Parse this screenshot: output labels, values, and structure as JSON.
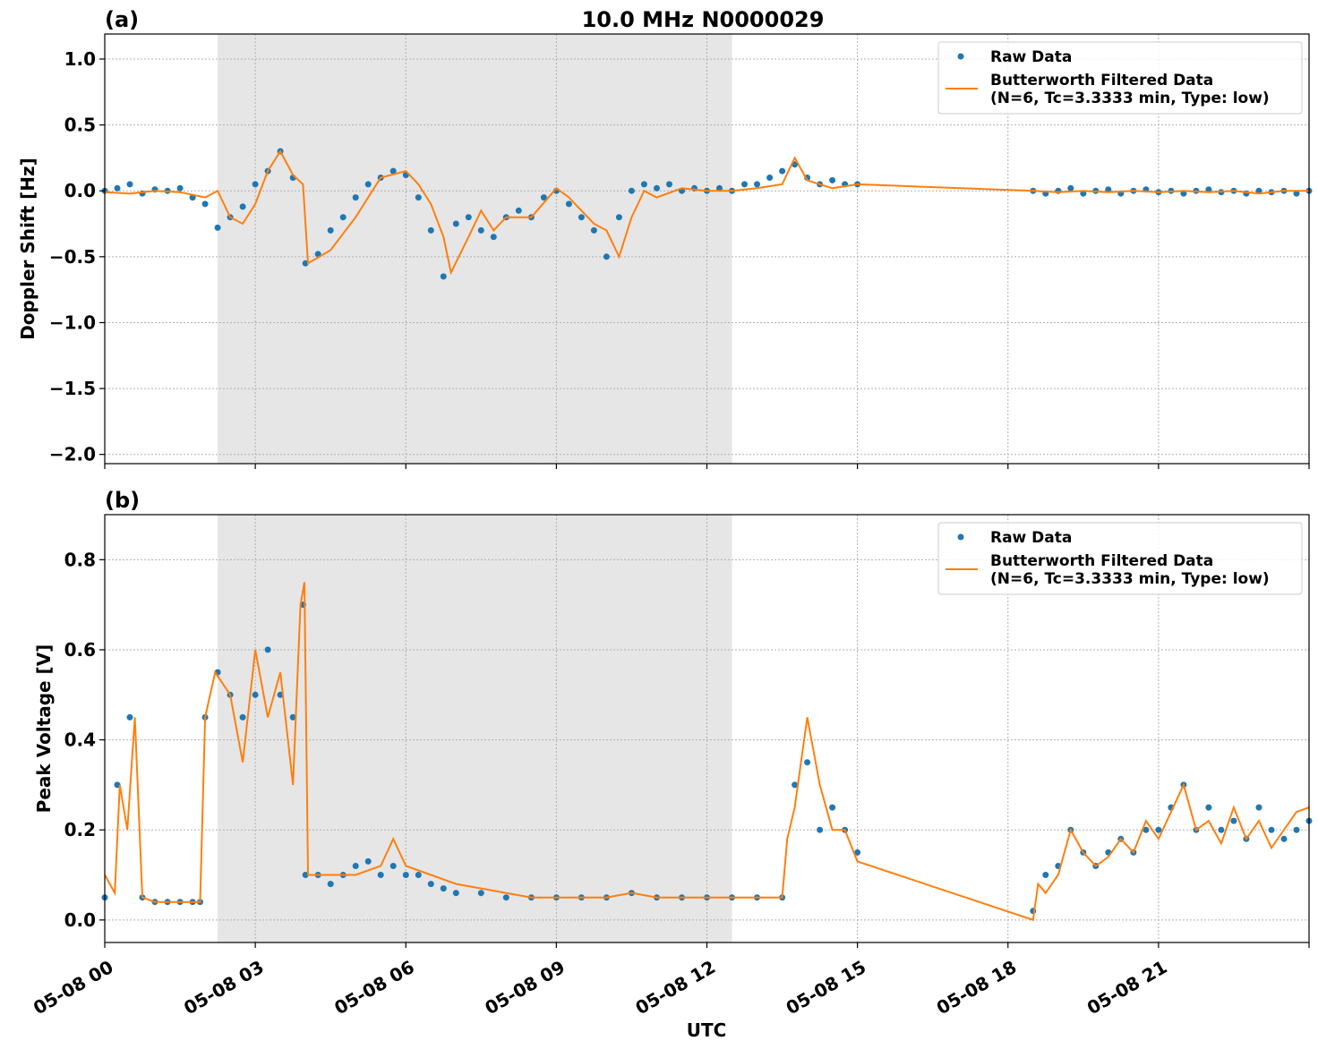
{
  "figure": {
    "title": "10.0 MHz N0000029",
    "xlabel": "UTC"
  },
  "chart_data": [
    {
      "type": "scatter",
      "panel_label": "(a)",
      "ylabel": "Doppler Shift [Hz]",
      "x_unit": "hours UTC on 05-08",
      "xlim": [
        0,
        24
      ],
      "ylim": [
        -2.07,
        1.19
      ],
      "x_ticks": [
        0,
        3,
        6,
        9,
        12,
        15,
        18,
        21
      ],
      "x_tick_labels": [
        "05-08 00",
        "05-08 03",
        "05-08 06",
        "05-08 09",
        "05-08 12",
        "05-08 15",
        "05-08 18",
        "05-08 21"
      ],
      "y_ticks": [
        -2.0,
        -1.5,
        -1.0,
        -0.5,
        0.0,
        0.5,
        1.0
      ],
      "y_tick_labels": [
        "−2.0",
        "−1.5",
        "−1.0",
        "−0.5",
        "0.0",
        "0.5",
        "1.0"
      ],
      "grid": true,
      "shaded_region": {
        "x_start": 2.25,
        "x_end": 12.5,
        "color": "#e6e6e6"
      },
      "legend": {
        "placement": "top-right",
        "entries": [
          "Raw Data",
          "Butterworth Filtered Data",
          "(N=6, Tc=3.3333 min, Type: low)"
        ]
      },
      "series": [
        {
          "name": "Raw Data",
          "kind": "scatter",
          "color": "#1f77b4",
          "x": [
            0.0,
            0.25,
            0.5,
            0.75,
            1.0,
            1.25,
            1.5,
            1.75,
            2.0,
            2.25,
            2.5,
            2.75,
            3.0,
            3.25,
            3.5,
            3.75,
            4.0,
            4.25,
            4.5,
            4.75,
            5.0,
            5.25,
            5.5,
            5.75,
            6.0,
            6.25,
            6.5,
            6.75,
            7.0,
            7.25,
            7.5,
            7.75,
            8.0,
            8.25,
            8.5,
            8.75,
            9.0,
            9.25,
            9.5,
            9.75,
            10.0,
            10.25,
            10.5,
            10.75,
            11.0,
            11.25,
            11.5,
            11.75,
            12.0,
            12.25,
            12.5,
            12.75,
            13.0,
            13.25,
            13.5,
            13.75,
            14.0,
            14.25,
            14.5,
            14.75,
            15.0,
            18.5,
            18.75,
            19.0,
            19.25,
            19.5,
            19.75,
            20.0,
            20.25,
            20.5,
            20.75,
            21.0,
            21.25,
            21.5,
            21.75,
            22.0,
            22.25,
            22.5,
            22.75,
            23.0,
            23.25,
            23.5,
            23.75,
            24.0
          ],
          "y": [
            0.0,
            0.02,
            0.05,
            -0.02,
            0.01,
            0.0,
            0.02,
            -0.05,
            -0.1,
            -0.28,
            -0.2,
            -0.12,
            0.05,
            0.15,
            0.3,
            0.1,
            -0.55,
            -0.48,
            -0.3,
            -0.2,
            -0.05,
            0.05,
            0.1,
            0.15,
            0.12,
            -0.05,
            -0.3,
            -0.65,
            -0.25,
            -0.2,
            -0.3,
            -0.35,
            -0.2,
            -0.15,
            -0.2,
            -0.05,
            0.0,
            -0.1,
            -0.2,
            -0.3,
            -0.5,
            -0.2,
            0.0,
            0.05,
            0.02,
            0.05,
            0.0,
            0.02,
            0.0,
            0.02,
            0.0,
            0.05,
            0.05,
            0.1,
            0.15,
            0.2,
            0.1,
            0.05,
            0.08,
            0.05,
            0.05,
            0.0,
            -0.02,
            0.0,
            0.02,
            -0.02,
            0.0,
            0.01,
            -0.02,
            0.0,
            0.01,
            -0.01,
            0.0,
            -0.02,
            0.0,
            0.01,
            -0.01,
            0.0,
            -0.02,
            0.0,
            -0.01,
            0.0,
            -0.02,
            0.0
          ]
        },
        {
          "name": "Butterworth Filtered Data",
          "kind": "line",
          "color": "#ff7f0e",
          "x": [
            0.0,
            0.5,
            1.0,
            1.5,
            2.0,
            2.25,
            2.5,
            2.75,
            3.0,
            3.25,
            3.5,
            3.75,
            3.95,
            4.05,
            4.5,
            5.0,
            5.5,
            6.0,
            6.25,
            6.5,
            6.75,
            6.9,
            7.25,
            7.5,
            7.75,
            8.0,
            8.5,
            9.0,
            9.25,
            9.5,
            9.75,
            10.0,
            10.25,
            10.5,
            10.75,
            11.0,
            11.5,
            12.0,
            12.5,
            13.0,
            13.5,
            13.75,
            14.0,
            14.5,
            15.0,
            18.5,
            19.0,
            19.5,
            20.0,
            20.5,
            21.0,
            21.5,
            22.0,
            22.5,
            23.0,
            23.5,
            24.0
          ],
          "y": [
            -0.01,
            -0.02,
            0.0,
            -0.01,
            -0.05,
            0.0,
            -0.2,
            -0.25,
            -0.1,
            0.15,
            0.3,
            0.12,
            0.05,
            -0.55,
            -0.45,
            -0.2,
            0.1,
            0.15,
            0.05,
            -0.1,
            -0.35,
            -0.62,
            -0.35,
            -0.15,
            -0.3,
            -0.2,
            -0.2,
            0.02,
            -0.05,
            -0.15,
            -0.25,
            -0.3,
            -0.5,
            -0.2,
            0.0,
            -0.05,
            0.02,
            0.0,
            0.0,
            0.02,
            0.05,
            0.25,
            0.08,
            0.02,
            0.05,
            0.0,
            -0.01,
            0.0,
            -0.01,
            0.0,
            -0.01,
            0.0,
            -0.01,
            0.0,
            -0.02,
            0.0,
            0.0
          ]
        }
      ]
    },
    {
      "type": "scatter",
      "panel_label": "(b)",
      "ylabel": "Peak Voltage [V]",
      "x_unit": "hours UTC on 05-08",
      "xlim": [
        0,
        24
      ],
      "ylim": [
        -0.05,
        0.9
      ],
      "x_ticks": [
        0,
        3,
        6,
        9,
        12,
        15,
        18,
        21
      ],
      "x_tick_labels": [
        "05-08 00",
        "05-08 03",
        "05-08 06",
        "05-08 09",
        "05-08 12",
        "05-08 15",
        "05-08 18",
        "05-08 21"
      ],
      "y_ticks": [
        0.0,
        0.2,
        0.4,
        0.6,
        0.8
      ],
      "y_tick_labels": [
        "0.0",
        "0.2",
        "0.4",
        "0.6",
        "0.8"
      ],
      "grid": true,
      "shaded_region": {
        "x_start": 2.25,
        "x_end": 12.5,
        "color": "#e6e6e6"
      },
      "legend": {
        "placement": "top-right",
        "entries": [
          "Raw Data",
          "Butterworth Filtered Data",
          "(N=6, Tc=3.3333 min, Type: low)"
        ]
      },
      "series": [
        {
          "name": "Raw Data",
          "kind": "scatter",
          "color": "#1f77b4",
          "x": [
            0.0,
            0.25,
            0.5,
            0.75,
            1.0,
            1.25,
            1.5,
            1.75,
            1.9,
            2.0,
            2.25,
            2.5,
            2.75,
            3.0,
            3.25,
            3.5,
            3.75,
            3.95,
            4.0,
            4.25,
            4.5,
            4.75,
            5.0,
            5.25,
            5.5,
            5.75,
            6.0,
            6.25,
            6.5,
            6.75,
            7.0,
            7.5,
            8.0,
            8.5,
            9.0,
            9.5,
            10.0,
            10.5,
            11.0,
            11.5,
            12.0,
            12.5,
            13.0,
            13.5,
            13.75,
            14.0,
            14.25,
            14.5,
            14.75,
            15.0,
            18.5,
            18.75,
            19.0,
            19.25,
            19.5,
            19.75,
            20.0,
            20.25,
            20.5,
            20.75,
            21.0,
            21.25,
            21.5,
            21.75,
            22.0,
            22.25,
            22.5,
            22.75,
            23.0,
            23.25,
            23.5,
            23.75,
            24.0
          ],
          "y": [
            0.05,
            0.3,
            0.45,
            0.05,
            0.04,
            0.04,
            0.04,
            0.04,
            0.04,
            0.45,
            0.55,
            0.5,
            0.45,
            0.5,
            0.6,
            0.5,
            0.45,
            0.7,
            0.1,
            0.1,
            0.08,
            0.1,
            0.12,
            0.13,
            0.1,
            0.12,
            0.1,
            0.1,
            0.08,
            0.07,
            0.06,
            0.06,
            0.05,
            0.05,
            0.05,
            0.05,
            0.05,
            0.06,
            0.05,
            0.05,
            0.05,
            0.05,
            0.05,
            0.05,
            0.3,
            0.35,
            0.2,
            0.25,
            0.2,
            0.15,
            0.02,
            0.1,
            0.12,
            0.2,
            0.15,
            0.12,
            0.15,
            0.18,
            0.15,
            0.2,
            0.2,
            0.25,
            0.3,
            0.2,
            0.25,
            0.2,
            0.22,
            0.18,
            0.25,
            0.2,
            0.18,
            0.2,
            0.22
          ]
        },
        {
          "name": "Butterworth Filtered Data",
          "kind": "line",
          "color": "#ff7f0e",
          "x": [
            0.0,
            0.2,
            0.3,
            0.45,
            0.6,
            0.75,
            1.0,
            1.5,
            1.9,
            2.0,
            2.2,
            2.5,
            2.75,
            3.0,
            3.25,
            3.5,
            3.75,
            3.9,
            3.98,
            4.05,
            4.5,
            5.0,
            5.5,
            5.75,
            6.0,
            6.5,
            7.0,
            7.5,
            8.0,
            8.5,
            9.0,
            9.5,
            10.0,
            10.5,
            11.0,
            11.5,
            12.0,
            12.5,
            13.0,
            13.5,
            13.6,
            13.75,
            14.0,
            14.25,
            14.5,
            14.75,
            15.0,
            18.5,
            18.6,
            18.75,
            19.0,
            19.25,
            19.5,
            19.75,
            20.0,
            20.25,
            20.5,
            20.75,
            21.0,
            21.25,
            21.5,
            21.75,
            22.0,
            22.25,
            22.5,
            22.75,
            23.0,
            23.25,
            23.5,
            23.75,
            24.0
          ],
          "y": [
            0.1,
            0.06,
            0.3,
            0.2,
            0.45,
            0.05,
            0.04,
            0.04,
            0.04,
            0.45,
            0.55,
            0.5,
            0.35,
            0.6,
            0.45,
            0.55,
            0.3,
            0.7,
            0.75,
            0.1,
            0.1,
            0.1,
            0.12,
            0.18,
            0.12,
            0.1,
            0.08,
            0.07,
            0.06,
            0.05,
            0.05,
            0.05,
            0.05,
            0.06,
            0.05,
            0.05,
            0.05,
            0.05,
            0.05,
            0.05,
            0.18,
            0.25,
            0.45,
            0.3,
            0.2,
            0.2,
            0.13,
            0.0,
            0.08,
            0.06,
            0.1,
            0.2,
            0.15,
            0.12,
            0.14,
            0.18,
            0.15,
            0.22,
            0.18,
            0.24,
            0.3,
            0.2,
            0.22,
            0.17,
            0.25,
            0.18,
            0.22,
            0.16,
            0.2,
            0.24,
            0.25
          ]
        }
      ]
    }
  ]
}
